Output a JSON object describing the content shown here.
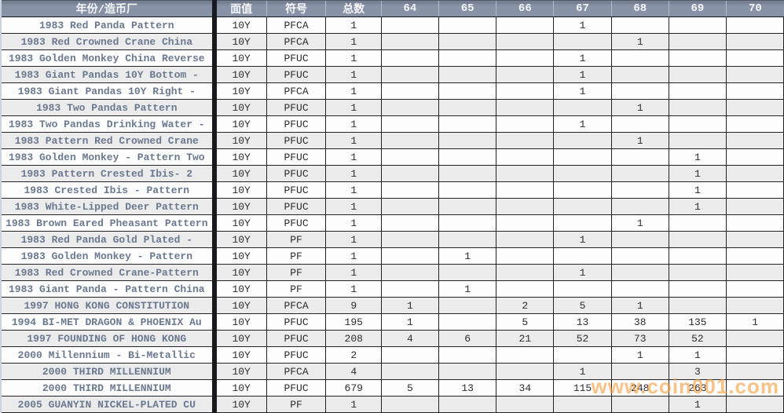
{
  "table": {
    "columns": {
      "year_mint": "年份/造币厂",
      "denomination": "面值",
      "symbol": "符号",
      "total": "总数",
      "grade_64": "64",
      "grade_65": "65",
      "grade_66": "66",
      "grade_67": "67",
      "grade_68": "68",
      "grade_69": "69",
      "grade_70": "70"
    },
    "rows": [
      {
        "name": "1983 Red Panda Pattern",
        "denomination": "10Y",
        "symbol": "PFCA",
        "total": "1",
        "grades": [
          "",
          "",
          "",
          "1",
          "",
          "",
          ""
        ]
      },
      {
        "name": "1983 Red Crowned Crane China",
        "denomination": "10Y",
        "symbol": "PFCA",
        "total": "1",
        "grades": [
          "",
          "",
          "",
          "",
          "1",
          "",
          ""
        ]
      },
      {
        "name": "1983 Golden Monkey China Reverse",
        "denomination": "10Y",
        "symbol": "PFUC",
        "total": "1",
        "grades": [
          "",
          "",
          "",
          "1",
          "",
          "",
          ""
        ]
      },
      {
        "name": "1983 Giant Pandas 10Y Bottom -",
        "denomination": "10Y",
        "symbol": "PFUC",
        "total": "1",
        "grades": [
          "",
          "",
          "",
          "1",
          "",
          "",
          ""
        ]
      },
      {
        "name": "1983 Giant Pandas 10Y Right -",
        "denomination": "10Y",
        "symbol": "PFCA",
        "total": "1",
        "grades": [
          "",
          "",
          "",
          "1",
          "",
          "",
          ""
        ]
      },
      {
        "name": "1983 Two Pandas Pattern",
        "denomination": "10Y",
        "symbol": "PFUC",
        "total": "1",
        "grades": [
          "",
          "",
          "",
          "",
          "1",
          "",
          ""
        ]
      },
      {
        "name": "1983 Two Pandas Drinking Water -",
        "denomination": "10Y",
        "symbol": "PFUC",
        "total": "1",
        "grades": [
          "",
          "",
          "",
          "1",
          "",
          "",
          ""
        ]
      },
      {
        "name": "1983 Pattern Red Crowned Crane",
        "denomination": "10Y",
        "symbol": "PFUC",
        "total": "1",
        "grades": [
          "",
          "",
          "",
          "",
          "1",
          "",
          ""
        ]
      },
      {
        "name": "1983 Golden Monkey - Pattern Two",
        "denomination": "10Y",
        "symbol": "PFUC",
        "total": "1",
        "grades": [
          "",
          "",
          "",
          "",
          "",
          "1",
          ""
        ]
      },
      {
        "name": "1983 Pattern Crested Ibis- 2",
        "denomination": "10Y",
        "symbol": "PFUC",
        "total": "1",
        "grades": [
          "",
          "",
          "",
          "",
          "",
          "1",
          ""
        ]
      },
      {
        "name": "1983 Crested Ibis - Pattern",
        "denomination": "10Y",
        "symbol": "PFUC",
        "total": "1",
        "grades": [
          "",
          "",
          "",
          "",
          "",
          "1",
          ""
        ]
      },
      {
        "name": "1983 White-Lipped Deer Pattern",
        "denomination": "10Y",
        "symbol": "PFUC",
        "total": "1",
        "grades": [
          "",
          "",
          "",
          "",
          "",
          "1",
          ""
        ]
      },
      {
        "name": "1983 Brown Eared Pheasant Pattern",
        "denomination": "10Y",
        "symbol": "PFUC",
        "total": "1",
        "grades": [
          "",
          "",
          "",
          "",
          "1",
          "",
          ""
        ]
      },
      {
        "name": "1983 Red Panda Gold Plated -",
        "denomination": "10Y",
        "symbol": "PF",
        "total": "1",
        "grades": [
          "",
          "",
          "",
          "1",
          "",
          "",
          ""
        ]
      },
      {
        "name": "1983 Golden Monkey - Pattern",
        "denomination": "10Y",
        "symbol": "PF",
        "total": "1",
        "grades": [
          "",
          "1",
          "",
          "",
          "",
          "",
          ""
        ]
      },
      {
        "name": "1983 Red Crowned Crane-Pattern",
        "denomination": "10Y",
        "symbol": "PF",
        "total": "1",
        "grades": [
          "",
          "",
          "",
          "1",
          "",
          "",
          ""
        ]
      },
      {
        "name": "1983 Giant Panda - Pattern China",
        "denomination": "10Y",
        "symbol": "PF",
        "total": "1",
        "grades": [
          "",
          "1",
          "",
          "",
          "",
          "",
          ""
        ]
      },
      {
        "name": "1997 HONG KONG CONSTITUTION",
        "denomination": "10Y",
        "symbol": "PFCA",
        "total": "9",
        "grades": [
          "1",
          "",
          "2",
          "5",
          "1",
          "",
          ""
        ]
      },
      {
        "name": "1994 BI-MET DRAGON & PHOENIX Au",
        "denomination": "10Y",
        "symbol": "PFUC",
        "total": "195",
        "grades": [
          "1",
          "",
          "5",
          "13",
          "38",
          "135",
          "1"
        ]
      },
      {
        "name": "1997 FOUNDING OF HONG KONG",
        "denomination": "10Y",
        "symbol": "PFUC",
        "total": "208",
        "grades": [
          "4",
          "6",
          "21",
          "52",
          "73",
          "52",
          ""
        ]
      },
      {
        "name": "2000 Millennium - Bi-Metallic",
        "denomination": "10Y",
        "symbol": "PFUC",
        "total": "2",
        "grades": [
          "",
          "",
          "",
          "",
          "1",
          "1",
          ""
        ]
      },
      {
        "name": "2000 THIRD MILLENNIUM",
        "denomination": "10Y",
        "symbol": "PFCA",
        "total": "4",
        "grades": [
          "",
          "",
          "",
          "1",
          "",
          "3",
          ""
        ]
      },
      {
        "name": "2000 THIRD MILLENNIUM",
        "denomination": "10Y",
        "symbol": "PFUC",
        "total": "679",
        "grades": [
          "5",
          "13",
          "34",
          "115",
          "248",
          "263",
          ""
        ]
      },
      {
        "name": "2005 GUANYIN NICKEL-PLATED CU",
        "denomination": "10Y",
        "symbol": "PF",
        "total": "1",
        "grades": [
          "",
          "",
          "",
          "",
          "",
          "1",
          ""
        ]
      }
    ]
  },
  "watermark": {
    "text": "www.coin001.com"
  },
  "colors": {
    "header_background": "#8691a5",
    "row_alternate": "#ebebeb",
    "name_text": "#6b7990",
    "cell_border": "#232326",
    "watermark_orange": "#f59d3d",
    "outer_border": "#c9d2de"
  }
}
